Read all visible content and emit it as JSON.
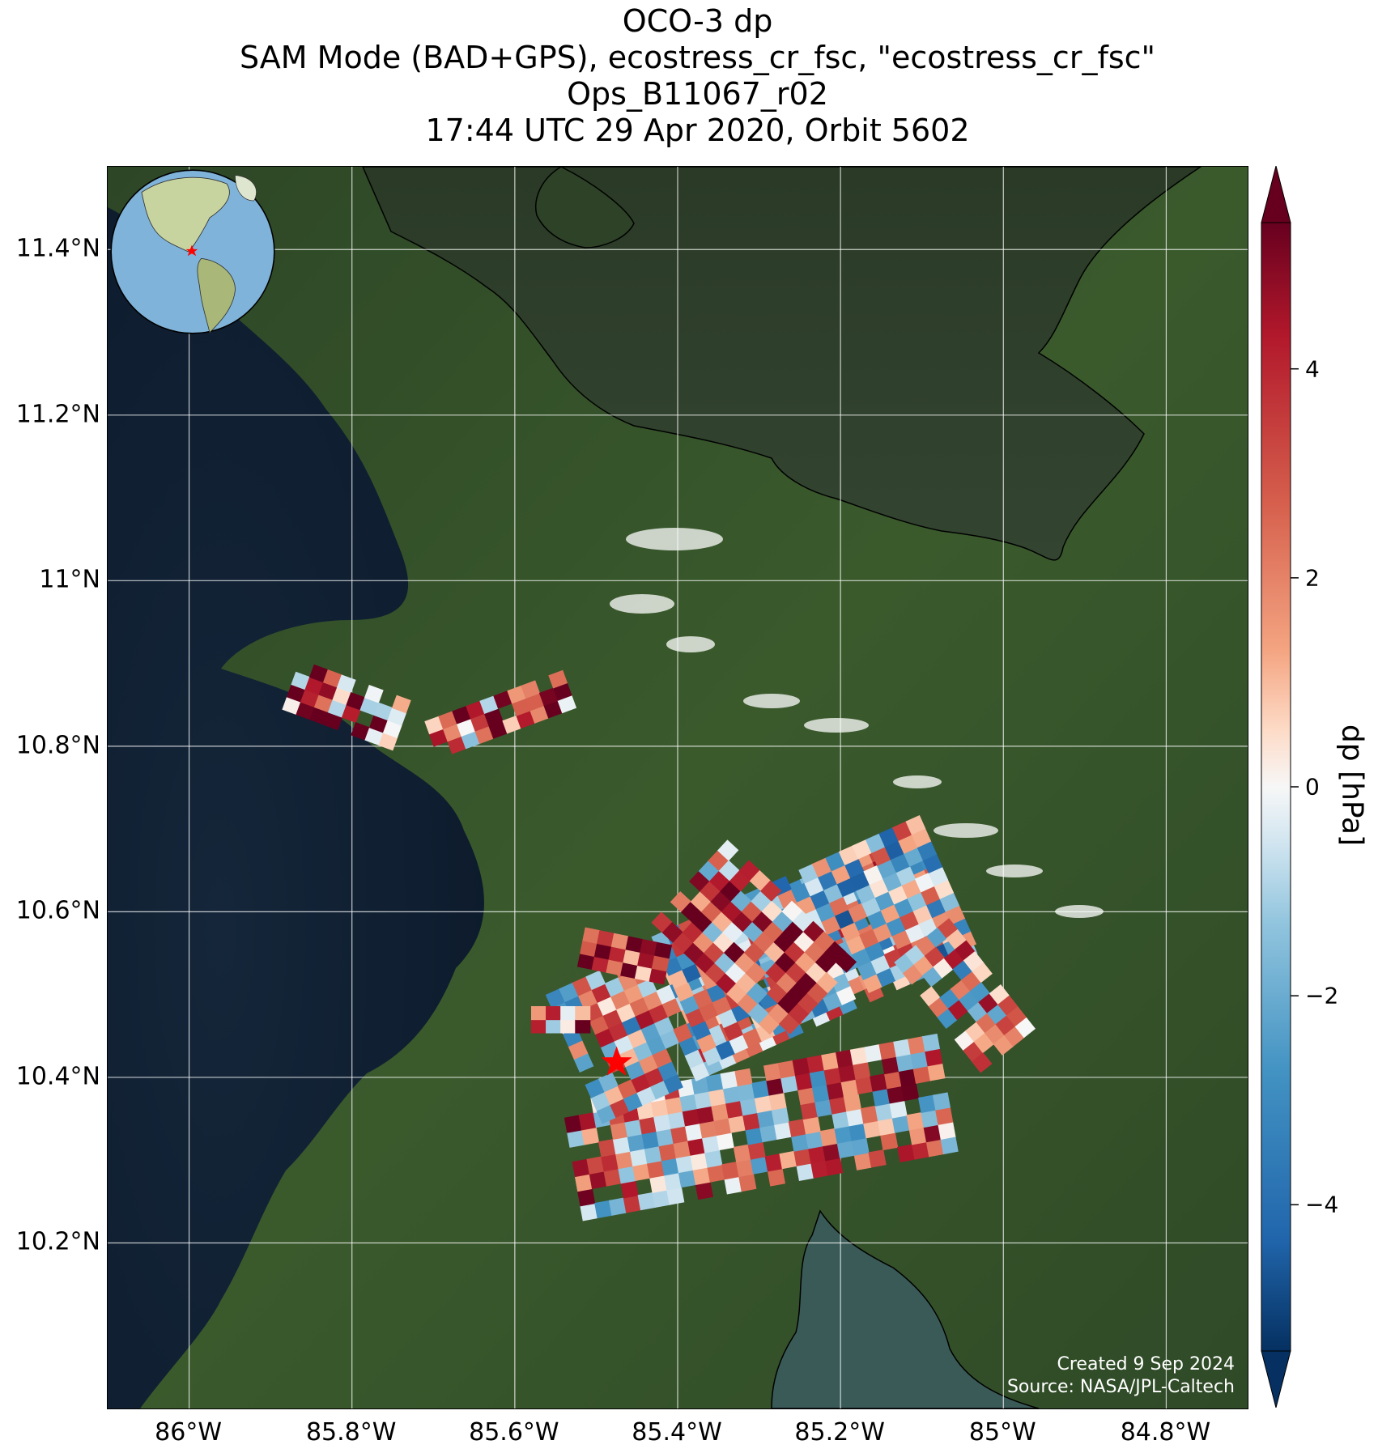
{
  "title": {
    "line1": "OCO-3 dp",
    "line2": "SAM Mode (BAD+GPS), ecostress_cr_fsc, \"ecostress_cr_fsc\"",
    "line3": "Ops_B11067_r02",
    "line4": "17:44 UTC 29 Apr 2020, Orbit 5602"
  },
  "map": {
    "lat_range": [
      10.0,
      11.5
    ],
    "lon_range": [
      -86.1,
      -84.7
    ],
    "lat_ticks": [
      {
        "value": 11.4,
        "label": "11.4°N"
      },
      {
        "value": 11.2,
        "label": "11.2°N"
      },
      {
        "value": 11.0,
        "label": "11°N"
      },
      {
        "value": 10.8,
        "label": "10.8°N"
      },
      {
        "value": 10.6,
        "label": "10.6°N"
      },
      {
        "value": 10.4,
        "label": "10.4°N"
      },
      {
        "value": 10.2,
        "label": "10.2°N"
      }
    ],
    "lon_ticks": [
      {
        "value": -86.0,
        "label": "86°W"
      },
      {
        "value": -85.8,
        "label": "85.8°W"
      },
      {
        "value": -85.6,
        "label": "85.6°W"
      },
      {
        "value": -85.4,
        "label": "85.4°W"
      },
      {
        "value": -85.2,
        "label": "85.2°W"
      },
      {
        "value": -85.0,
        "label": "85°W"
      },
      {
        "value": -84.8,
        "label": "84.8°W"
      }
    ],
    "target_marker": {
      "lon": -85.475,
      "lat": 10.418,
      "color": "#ff0000",
      "symbol": "star"
    },
    "basemap": "satellite imagery",
    "grid": true
  },
  "credits": {
    "created": "Created 9 Sep 2024",
    "source": "Source: NASA/JPL-Caltech"
  },
  "colorbar": {
    "label": "dp [hPa]",
    "vmin": -5.4,
    "vmax": 5.4,
    "cmap": "RdBu_r",
    "extend": "both",
    "ticks": [
      {
        "value": 4,
        "label": "4"
      },
      {
        "value": 2,
        "label": "2"
      },
      {
        "value": 0,
        "label": "0"
      },
      {
        "value": -2,
        "label": "−2"
      },
      {
        "value": -4,
        "label": "−4"
      }
    ]
  },
  "inset_globe": {
    "marker_color": "#ff0000",
    "ocean_color": "#7fb3d9",
    "land_color": "#c8d4a0"
  }
}
